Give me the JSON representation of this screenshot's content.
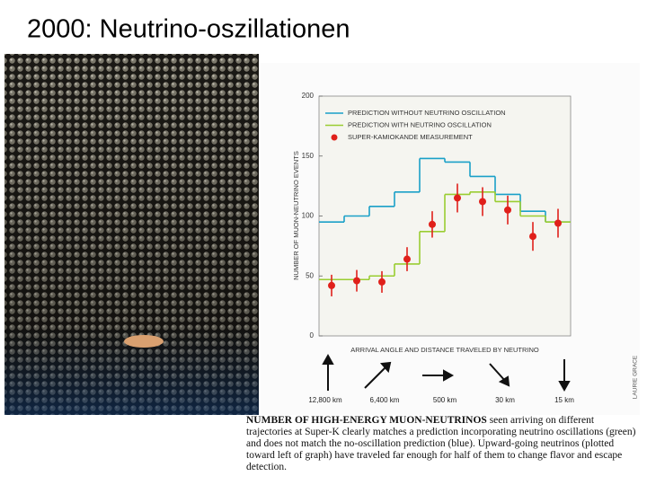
{
  "slide_title": "2000: Neutrino-oszillationen",
  "chart_data": {
    "type": "line",
    "y_label": "NUMBER OF MUON-NEUTRINO EVENTS",
    "x_label": "ARRIVAL ANGLE AND DISTANCE TRAVELED BY NEUTRINO",
    "categories": [
      null,
      null,
      null,
      null,
      null,
      null,
      null,
      null,
      null,
      null
    ],
    "ylim": [
      0,
      200
    ],
    "yticks": [
      0,
      50,
      100,
      150,
      200
    ],
    "series": [
      {
        "name": "PREDICTION WITHOUT NEUTRINO OSCILLATION",
        "color": "#1aa0c8",
        "style": "step",
        "values": [
          95,
          100,
          108,
          120,
          148,
          145,
          133,
          118,
          104,
          95
        ]
      },
      {
        "name": "PREDICTION WITH NEUTRINO OSCILLATION",
        "color": "#9acd32",
        "style": "step",
        "values": [
          47,
          47,
          50,
          60,
          87,
          118,
          120,
          112,
          100,
          95
        ]
      },
      {
        "name": "SUPER-KAMIOKANDE MEASUREMENT",
        "color": "#e0201b",
        "style": "points",
        "values": [
          42,
          46,
          45,
          64,
          93,
          115,
          112,
          105,
          83,
          94
        ],
        "errors": [
          9,
          9,
          9,
          10,
          11,
          12,
          12,
          12,
          12,
          12
        ]
      }
    ],
    "direction_labels": [
      "12,800 km",
      "6,400 km",
      "500 km",
      "30 km",
      "15 km"
    ],
    "credit": "LAURIE GRACE"
  },
  "caption": {
    "bold": "NUMBER OF HIGH-ENERGY MUON-NEUTRINOS",
    "text": " seen arriving on different trajectories at Super-K clearly matches a prediction incorporating neutrino oscillations (green) and does not match the no-oscillation prediction (blue). Upward-going neutrinos (plotted toward left of graph) have traveled far enough for half of them to change flavor and escape detection."
  }
}
